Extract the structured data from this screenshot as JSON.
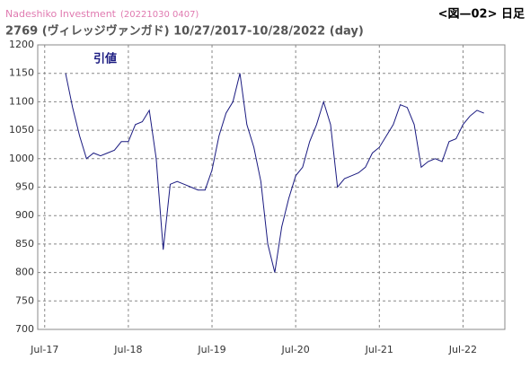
{
  "chart_data": {
    "type": "line",
    "brand": "Nadeshiko Investment",
    "timestamp": "(20221030 0407)",
    "figure_label": "<図—02> 日足",
    "title": "2769 (ヴィレッジヴァンガド) 10/27/2017-10/28/2022 (day)",
    "x": [
      "2017-10",
      "2017-11",
      "2017-12",
      "2018-01",
      "2018-02",
      "2018-03",
      "2018-04",
      "2018-05",
      "2018-06",
      "2018-07",
      "2018-08",
      "2018-09",
      "2018-10",
      "2018-11",
      "2018-12",
      "2019-01",
      "2019-02",
      "2019-03",
      "2019-04",
      "2019-05",
      "2019-06",
      "2019-07",
      "2019-08",
      "2019-09",
      "2019-10",
      "2019-11",
      "2019-12",
      "2020-01",
      "2020-02",
      "2020-03",
      "2020-04",
      "2020-05",
      "2020-06",
      "2020-07",
      "2020-08",
      "2020-09",
      "2020-10",
      "2020-11",
      "2020-12",
      "2021-01",
      "2021-02",
      "2021-03",
      "2021-04",
      "2021-05",
      "2021-06",
      "2021-07",
      "2021-08",
      "2021-09",
      "2021-10",
      "2021-11",
      "2021-12",
      "2022-01",
      "2022-02",
      "2022-03",
      "2022-04",
      "2022-05",
      "2022-06",
      "2022-07",
      "2022-08",
      "2022-09",
      "2022-10"
    ],
    "series": [
      {
        "name": "引値",
        "color": "#1a1a80",
        "values": [
          1150,
          1090,
          1040,
          1000,
          1010,
          1005,
          1010,
          1015,
          1030,
          1030,
          1060,
          1065,
          1085,
          1000,
          840,
          955,
          960,
          955,
          950,
          945,
          945,
          980,
          1040,
          1080,
          1100,
          1150,
          1060,
          1020,
          960,
          850,
          800,
          880,
          930,
          970,
          985,
          1030,
          1060,
          1100,
          1060,
          950,
          965,
          970,
          975,
          985,
          1010,
          1020,
          1040,
          1060,
          1095,
          1090,
          1060,
          985,
          995,
          1000,
          995,
          1030,
          1035,
          1060,
          1075,
          1085,
          1080
        ]
      }
    ],
    "xlim": [
      "2017-06",
      "2023-01"
    ],
    "xticks": [
      {
        "value": "2017-07",
        "label": "Jul-17"
      },
      {
        "value": "2018-07",
        "label": "Jul-18"
      },
      {
        "value": "2019-07",
        "label": "Jul-19"
      },
      {
        "value": "2020-07",
        "label": "Jul-20"
      },
      {
        "value": "2021-07",
        "label": "Jul-21"
      },
      {
        "value": "2022-07",
        "label": "Jul-22"
      }
    ],
    "ylim": [
      700,
      1200
    ],
    "yticks": [
      700,
      750,
      800,
      850,
      900,
      950,
      1000,
      1050,
      1100,
      1150,
      1200
    ],
    "grid": true
  }
}
